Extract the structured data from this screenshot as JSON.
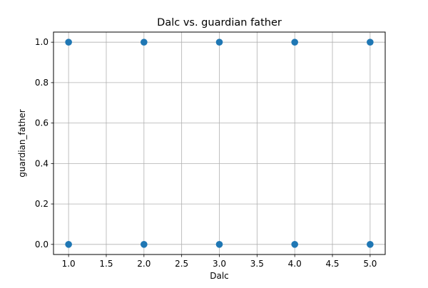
{
  "chart_data": {
    "type": "scatter",
    "title": "Dalc vs. guardian father",
    "xlabel": "Dalc",
    "ylabel": "guardian_father",
    "xlim": [
      0.8,
      5.2
    ],
    "ylim": [
      -0.05,
      1.05
    ],
    "xticks": [
      1.0,
      1.5,
      2.0,
      2.5,
      3.0,
      3.5,
      4.0,
      4.5,
      5.0
    ],
    "xtick_labels": [
      "1.0",
      "1.5",
      "2.0",
      "2.5",
      "3.0",
      "3.5",
      "4.0",
      "4.5",
      "5.0"
    ],
    "yticks": [
      0.0,
      0.2,
      0.4,
      0.6,
      0.8,
      1.0
    ],
    "ytick_labels": [
      "0.0",
      "0.2",
      "0.4",
      "0.6",
      "0.8",
      "1.0"
    ],
    "grid": true,
    "series": [
      {
        "color": "#1f77b4",
        "points": [
          {
            "x": 1,
            "y": 1
          },
          {
            "x": 2,
            "y": 1
          },
          {
            "x": 3,
            "y": 1
          },
          {
            "x": 4,
            "y": 1
          },
          {
            "x": 5,
            "y": 1
          },
          {
            "x": 1,
            "y": 0
          },
          {
            "x": 2,
            "y": 0
          },
          {
            "x": 3,
            "y": 0
          },
          {
            "x": 4,
            "y": 0
          },
          {
            "x": 5,
            "y": 0
          }
        ]
      }
    ]
  }
}
